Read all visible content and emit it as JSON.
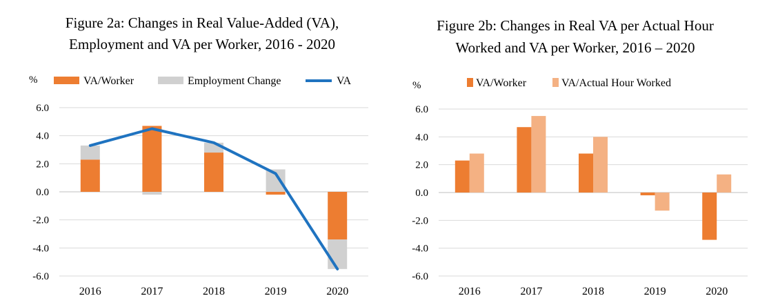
{
  "colors": {
    "va_worker": "#ED7D31",
    "employment": "#D0D0D0",
    "va_line": "#1F73C0",
    "va_hour": "#F4B183",
    "grid": "#D9D9D9",
    "axis": "#BFBFBF"
  },
  "chart_data": [
    {
      "type": "bar",
      "stacked": true,
      "title": "Figure 2a: Changes in Real Value-Added (VA), Employment and VA per Worker, 2016 - 2020",
      "title_lines": [
        "Figure 2a: Changes in Real Value-Added (VA),",
        "Employment and VA per Worker, 2016 - 2020"
      ],
      "ylabel": "%",
      "ylim": [
        -6.0,
        6.0
      ],
      "yticks": [
        6.0,
        4.0,
        2.0,
        0.0,
        -2.0,
        -4.0,
        -6.0
      ],
      "ytick_labels": [
        "6.0",
        "4.0",
        "2.0",
        "0.0",
        "-2.0",
        "-4.0",
        "-6.0"
      ],
      "categories": [
        "2016",
        "2017",
        "2018",
        "2019",
        "2020"
      ],
      "grid": true,
      "legend_position": "top",
      "series": [
        {
          "name": "VA/Worker",
          "kind": "bar",
          "values": [
            2.3,
            4.7,
            2.8,
            -0.2,
            -3.4
          ]
        },
        {
          "name": "Employment Change",
          "kind": "bar",
          "values": [
            1.0,
            -0.2,
            0.7,
            1.6,
            -2.1
          ]
        },
        {
          "name": "VA",
          "kind": "line",
          "values": [
            3.3,
            4.5,
            3.5,
            1.3,
            -5.5
          ]
        }
      ]
    },
    {
      "type": "bar",
      "stacked": false,
      "title": "Figure 2b: Changes in Real VA per Actual Hour Worked and VA per Worker, 2016 – 2020",
      "title_lines": [
        "Figure 2b: Changes in Real VA per Actual Hour",
        "Worked and VA per Worker, 2016 – 2020"
      ],
      "ylabel": "%",
      "ylim": [
        -6.0,
        6.0
      ],
      "yticks": [
        6.0,
        4.0,
        2.0,
        0.0,
        -2.0,
        -4.0,
        -6.0
      ],
      "ytick_labels": [
        "6.0",
        "4.0",
        "2.0",
        "0.0",
        "-2.0",
        "-4.0",
        "-6.0"
      ],
      "categories": [
        "2016",
        "2017",
        "2018",
        "2019",
        "2020"
      ],
      "grid": true,
      "legend_position": "top",
      "series": [
        {
          "name": "VA/Worker",
          "kind": "bar",
          "values": [
            2.3,
            4.7,
            2.8,
            -0.2,
            -3.4
          ]
        },
        {
          "name": "VA/Actual Hour Worked",
          "kind": "bar",
          "values": [
            2.8,
            5.5,
            4.0,
            -1.3,
            1.3
          ]
        }
      ]
    }
  ]
}
